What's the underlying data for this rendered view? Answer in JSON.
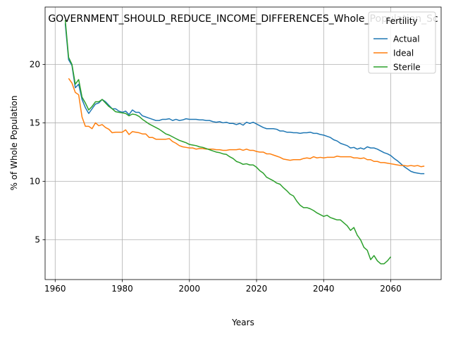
{
  "chart_data": {
    "type": "line",
    "title": "GOVERNMENT_SHOULD_REDUCE_INCOME_DIFFERENCES_Whole_Population_Sc",
    "xlabel": "Years",
    "ylabel": "% of Whole Population",
    "xlim": [
      1957,
      2075
    ],
    "ylim": [
      1.6,
      24.9
    ],
    "xticks": [
      1960,
      1980,
      2000,
      2020,
      2040,
      2060
    ],
    "yticks": [
      5,
      10,
      15,
      20
    ],
    "grid": true,
    "legend": {
      "title": "Fertility",
      "placement": "top-right"
    },
    "series": [
      {
        "name": "Actual",
        "color": "#1f77b4",
        "points": [
          [
            1963,
            23.5
          ],
          [
            1964,
            20.4
          ],
          [
            1965,
            19.9
          ],
          [
            1966,
            18.0
          ],
          [
            1967,
            18.3
          ],
          [
            1968,
            17.0
          ],
          [
            1969,
            16.3
          ],
          [
            1970,
            15.8
          ],
          [
            1971,
            16.2
          ],
          [
            1972,
            16.6
          ],
          [
            1973,
            16.7
          ],
          [
            1974,
            17.0
          ],
          [
            1975,
            16.8
          ],
          [
            1976,
            16.5
          ],
          [
            1977,
            16.2
          ],
          [
            1978,
            16.2
          ],
          [
            1979,
            16.0
          ],
          [
            1980,
            15.9
          ],
          [
            1981,
            16.0
          ],
          [
            1982,
            15.7
          ],
          [
            1983,
            16.1
          ],
          [
            1984,
            15.9
          ],
          [
            1985,
            15.9
          ],
          [
            1986,
            15.6
          ],
          [
            1987,
            15.5
          ],
          [
            1988,
            15.4
          ],
          [
            1989,
            15.3
          ],
          [
            1990,
            15.2
          ],
          [
            1991,
            15.2
          ],
          [
            1992,
            15.3
          ],
          [
            1993,
            15.3
          ],
          [
            1994,
            15.35
          ],
          [
            1995,
            15.2
          ],
          [
            1996,
            15.3
          ],
          [
            1997,
            15.2
          ],
          [
            1998,
            15.25
          ],
          [
            1999,
            15.35
          ],
          [
            2000,
            15.3
          ],
          [
            2001,
            15.3
          ],
          [
            2002,
            15.3
          ],
          [
            2003,
            15.25
          ],
          [
            2004,
            15.25
          ],
          [
            2005,
            15.2
          ],
          [
            2006,
            15.2
          ],
          [
            2007,
            15.1
          ],
          [
            2008,
            15.05
          ],
          [
            2009,
            15.1
          ],
          [
            2010,
            15.0
          ],
          [
            2011,
            15.05
          ],
          [
            2012,
            14.95
          ],
          [
            2013,
            14.95
          ],
          [
            2014,
            14.85
          ],
          [
            2015,
            14.95
          ],
          [
            2016,
            14.8
          ],
          [
            2017,
            15.05
          ],
          [
            2018,
            14.95
          ],
          [
            2019,
            15.05
          ],
          [
            2020,
            14.9
          ],
          [
            2021,
            14.75
          ],
          [
            2022,
            14.6
          ],
          [
            2023,
            14.5
          ],
          [
            2024,
            14.5
          ],
          [
            2025,
            14.5
          ],
          [
            2026,
            14.45
          ],
          [
            2027,
            14.3
          ],
          [
            2028,
            14.3
          ],
          [
            2029,
            14.2
          ],
          [
            2030,
            14.2
          ],
          [
            2031,
            14.15
          ],
          [
            2032,
            14.15
          ],
          [
            2033,
            14.1
          ],
          [
            2034,
            14.15
          ],
          [
            2035,
            14.15
          ],
          [
            2036,
            14.2
          ],
          [
            2037,
            14.1
          ],
          [
            2038,
            14.1
          ],
          [
            2039,
            14.0
          ],
          [
            2040,
            13.95
          ],
          [
            2041,
            13.85
          ],
          [
            2042,
            13.75
          ],
          [
            2043,
            13.55
          ],
          [
            2044,
            13.45
          ],
          [
            2045,
            13.25
          ],
          [
            2046,
            13.15
          ],
          [
            2047,
            13.05
          ],
          [
            2048,
            12.85
          ],
          [
            2049,
            12.9
          ],
          [
            2050,
            12.75
          ],
          [
            2051,
            12.85
          ],
          [
            2052,
            12.75
          ],
          [
            2053,
            12.95
          ],
          [
            2054,
            12.85
          ],
          [
            2055,
            12.85
          ],
          [
            2056,
            12.75
          ],
          [
            2057,
            12.6
          ],
          [
            2058,
            12.45
          ],
          [
            2059,
            12.35
          ],
          [
            2060,
            12.2
          ],
          [
            2061,
            11.95
          ],
          [
            2062,
            11.75
          ],
          [
            2063,
            11.5
          ],
          [
            2064,
            11.25
          ],
          [
            2065,
            11.05
          ],
          [
            2066,
            10.85
          ],
          [
            2067,
            10.75
          ],
          [
            2068,
            10.7
          ],
          [
            2069,
            10.65
          ],
          [
            2070,
            10.65
          ]
        ]
      },
      {
        "name": "Ideal",
        "color": "#ff7f0e",
        "points": [
          [
            1964,
            18.8
          ],
          [
            1965,
            18.4
          ],
          [
            1966,
            17.6
          ],
          [
            1967,
            17.4
          ],
          [
            1968,
            15.5
          ],
          [
            1969,
            14.7
          ],
          [
            1970,
            14.7
          ],
          [
            1971,
            14.5
          ],
          [
            1972,
            15.0
          ],
          [
            1973,
            14.75
          ],
          [
            1974,
            14.85
          ],
          [
            1975,
            14.6
          ],
          [
            1976,
            14.45
          ],
          [
            1977,
            14.15
          ],
          [
            1978,
            14.2
          ],
          [
            1979,
            14.2
          ],
          [
            1980,
            14.2
          ],
          [
            1981,
            14.4
          ],
          [
            1982,
            14.0
          ],
          [
            1983,
            14.25
          ],
          [
            1984,
            14.2
          ],
          [
            1985,
            14.15
          ],
          [
            1986,
            14.05
          ],
          [
            1987,
            14.05
          ],
          [
            1988,
            13.75
          ],
          [
            1989,
            13.75
          ],
          [
            1990,
            13.6
          ],
          [
            1991,
            13.6
          ],
          [
            1992,
            13.6
          ],
          [
            1993,
            13.6
          ],
          [
            1994,
            13.65
          ],
          [
            1995,
            13.4
          ],
          [
            1996,
            13.25
          ],
          [
            1997,
            13.05
          ],
          [
            1998,
            12.95
          ],
          [
            1999,
            12.9
          ],
          [
            2000,
            12.85
          ],
          [
            2001,
            12.85
          ],
          [
            2002,
            12.75
          ],
          [
            2003,
            12.8
          ],
          [
            2004,
            12.8
          ],
          [
            2005,
            12.75
          ],
          [
            2006,
            12.75
          ],
          [
            2007,
            12.75
          ],
          [
            2008,
            12.7
          ],
          [
            2009,
            12.7
          ],
          [
            2010,
            12.65
          ],
          [
            2011,
            12.65
          ],
          [
            2012,
            12.7
          ],
          [
            2013,
            12.7
          ],
          [
            2014,
            12.7
          ],
          [
            2015,
            12.75
          ],
          [
            2016,
            12.65
          ],
          [
            2017,
            12.75
          ],
          [
            2018,
            12.65
          ],
          [
            2019,
            12.65
          ],
          [
            2020,
            12.55
          ],
          [
            2021,
            12.5
          ],
          [
            2022,
            12.5
          ],
          [
            2023,
            12.35
          ],
          [
            2024,
            12.35
          ],
          [
            2025,
            12.25
          ],
          [
            2026,
            12.15
          ],
          [
            2027,
            12.05
          ],
          [
            2028,
            11.9
          ],
          [
            2029,
            11.85
          ],
          [
            2030,
            11.8
          ],
          [
            2031,
            11.85
          ],
          [
            2032,
            11.85
          ],
          [
            2033,
            11.85
          ],
          [
            2034,
            11.95
          ],
          [
            2035,
            12.0
          ],
          [
            2036,
            11.95
          ],
          [
            2037,
            12.1
          ],
          [
            2038,
            12.0
          ],
          [
            2039,
            12.05
          ],
          [
            2040,
            12.0
          ],
          [
            2041,
            12.05
          ],
          [
            2042,
            12.05
          ],
          [
            2043,
            12.05
          ],
          [
            2044,
            12.15
          ],
          [
            2045,
            12.1
          ],
          [
            2046,
            12.1
          ],
          [
            2047,
            12.1
          ],
          [
            2048,
            12.1
          ],
          [
            2049,
            12.0
          ],
          [
            2050,
            12.0
          ],
          [
            2051,
            11.95
          ],
          [
            2052,
            12.0
          ],
          [
            2053,
            11.85
          ],
          [
            2054,
            11.85
          ],
          [
            2055,
            11.7
          ],
          [
            2056,
            11.7
          ],
          [
            2057,
            11.6
          ],
          [
            2058,
            11.6
          ],
          [
            2059,
            11.55
          ],
          [
            2060,
            11.5
          ],
          [
            2061,
            11.45
          ],
          [
            2062,
            11.4
          ],
          [
            2063,
            11.35
          ],
          [
            2064,
            11.35
          ],
          [
            2065,
            11.3
          ],
          [
            2066,
            11.35
          ],
          [
            2067,
            11.3
          ],
          [
            2068,
            11.35
          ],
          [
            2069,
            11.25
          ],
          [
            2070,
            11.3
          ]
        ]
      },
      {
        "name": "Sterile",
        "color": "#2ca02c",
        "points": [
          [
            1963,
            23.8
          ],
          [
            1964,
            20.6
          ],
          [
            1965,
            20.0
          ],
          [
            1966,
            18.3
          ],
          [
            1967,
            18.7
          ],
          [
            1968,
            17.2
          ],
          [
            1969,
            16.7
          ],
          [
            1970,
            16.1
          ],
          [
            1971,
            16.4
          ],
          [
            1972,
            16.8
          ],
          [
            1973,
            16.8
          ],
          [
            1974,
            17.0
          ],
          [
            1975,
            16.7
          ],
          [
            1976,
            16.4
          ],
          [
            1977,
            16.2
          ],
          [
            1978,
            15.95
          ],
          [
            1979,
            15.9
          ],
          [
            1980,
            15.85
          ],
          [
            1981,
            15.8
          ],
          [
            1982,
            15.6
          ],
          [
            1983,
            15.75
          ],
          [
            1984,
            15.7
          ],
          [
            1985,
            15.55
          ],
          [
            1986,
            15.3
          ],
          [
            1987,
            15.1
          ],
          [
            1988,
            14.9
          ],
          [
            1989,
            14.75
          ],
          [
            1990,
            14.6
          ],
          [
            1991,
            14.45
          ],
          [
            1992,
            14.25
          ],
          [
            1993,
            14.05
          ],
          [
            1994,
            13.95
          ],
          [
            1995,
            13.8
          ],
          [
            1996,
            13.65
          ],
          [
            1997,
            13.5
          ],
          [
            1998,
            13.4
          ],
          [
            1999,
            13.3
          ],
          [
            2000,
            13.15
          ],
          [
            2001,
            13.1
          ],
          [
            2002,
            13.05
          ],
          [
            2003,
            12.95
          ],
          [
            2004,
            12.9
          ],
          [
            2005,
            12.8
          ],
          [
            2006,
            12.7
          ],
          [
            2007,
            12.6
          ],
          [
            2008,
            12.5
          ],
          [
            2009,
            12.45
          ],
          [
            2010,
            12.35
          ],
          [
            2011,
            12.3
          ],
          [
            2012,
            12.1
          ],
          [
            2013,
            11.95
          ],
          [
            2014,
            11.7
          ],
          [
            2015,
            11.6
          ],
          [
            2016,
            11.45
          ],
          [
            2017,
            11.5
          ],
          [
            2018,
            11.4
          ],
          [
            2019,
            11.4
          ],
          [
            2020,
            11.2
          ],
          [
            2021,
            10.9
          ],
          [
            2022,
            10.7
          ],
          [
            2023,
            10.35
          ],
          [
            2024,
            10.2
          ],
          [
            2025,
            10.05
          ],
          [
            2026,
            9.85
          ],
          [
            2027,
            9.75
          ],
          [
            2028,
            9.45
          ],
          [
            2029,
            9.2
          ],
          [
            2030,
            8.9
          ],
          [
            2031,
            8.75
          ],
          [
            2032,
            8.3
          ],
          [
            2033,
            7.95
          ],
          [
            2034,
            7.75
          ],
          [
            2035,
            7.75
          ],
          [
            2036,
            7.65
          ],
          [
            2037,
            7.5
          ],
          [
            2038,
            7.3
          ],
          [
            2039,
            7.15
          ],
          [
            2040,
            7.0
          ],
          [
            2041,
            7.1
          ],
          [
            2042,
            6.9
          ],
          [
            2043,
            6.8
          ],
          [
            2044,
            6.7
          ],
          [
            2045,
            6.7
          ],
          [
            2046,
            6.45
          ],
          [
            2047,
            6.2
          ],
          [
            2048,
            5.8
          ],
          [
            2049,
            6.05
          ],
          [
            2050,
            5.4
          ],
          [
            2051,
            5.0
          ],
          [
            2052,
            4.35
          ],
          [
            2053,
            4.1
          ],
          [
            2054,
            3.3
          ],
          [
            2055,
            3.65
          ],
          [
            2056,
            3.2
          ],
          [
            2057,
            2.95
          ],
          [
            2058,
            2.95
          ],
          [
            2059,
            3.2
          ],
          [
            2060,
            3.55
          ]
        ]
      }
    ]
  }
}
